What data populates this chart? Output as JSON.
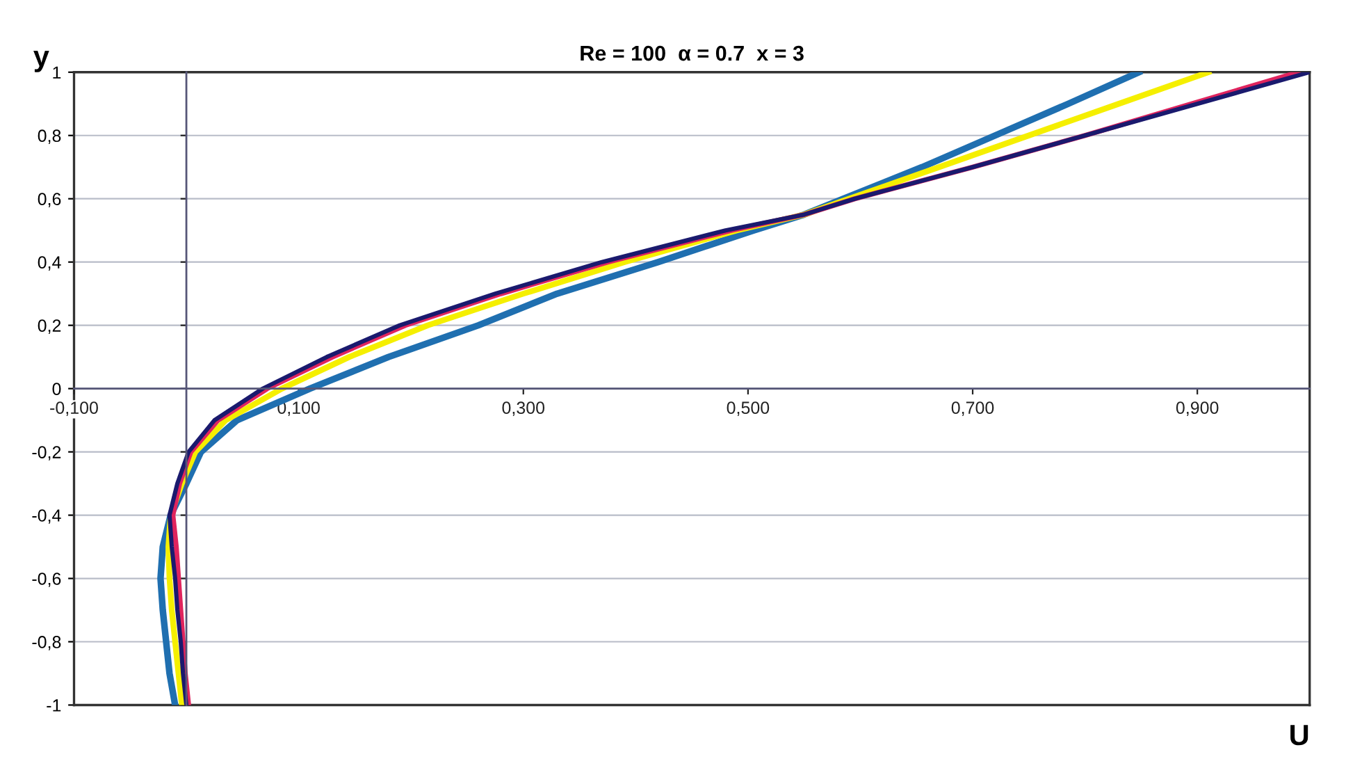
{
  "chart_data": {
    "type": "line",
    "title": "Re = 100  α = 0.7  x = 3",
    "xlabel": "U",
    "ylabel": "y",
    "xlim": [
      -0.1,
      1.0
    ],
    "ylim": [
      -1,
      1
    ],
    "xticks": [
      {
        "value": -0.1,
        "label": "-0,100"
      },
      {
        "value": 0.1,
        "label": "0,100"
      },
      {
        "value": 0.3,
        "label": "0,300"
      },
      {
        "value": 0.5,
        "label": "0,500"
      },
      {
        "value": 0.7,
        "label": "0,700"
      },
      {
        "value": 0.9,
        "label": "0,900"
      }
    ],
    "yticks": [
      -1,
      {
        "value": -0.8,
        "label": "-0,8"
      },
      {
        "value": -0.6,
        "label": "-0,6"
      },
      {
        "value": -0.4,
        "label": "-0,4"
      },
      {
        "value": -0.2,
        "label": "-0,2"
      },
      0,
      {
        "value": 0.2,
        "label": "0,2"
      },
      {
        "value": 0.4,
        "label": "0,4"
      },
      {
        "value": 0.6,
        "label": "0,6"
      },
      {
        "value": 0.8,
        "label": "0,8"
      },
      1
    ],
    "grid": "y",
    "legend": false,
    "marker": "none",
    "line_style": "solid",
    "series": [
      {
        "color": "#1f6fb0",
        "x": [
          -0.01,
          -0.015,
          -0.018,
          -0.021,
          -0.023,
          -0.021,
          -0.014,
          0.0,
          0.013,
          0.045,
          0.11,
          0.18,
          0.26,
          0.33,
          0.42,
          0.505,
          0.55,
          0.585,
          0.655,
          0.72,
          0.785,
          0.848
        ],
        "values": [
          -1,
          -0.9,
          -0.8,
          -0.7,
          -0.6,
          -0.5,
          -0.4,
          -0.3,
          -0.2,
          -0.1,
          0,
          0.1,
          0.2,
          0.3,
          0.4,
          0.5,
          0.55,
          0.6,
          0.7,
          0.8,
          0.9,
          1
        ]
      },
      {
        "color": "#f5ef00",
        "x": [
          -0.004,
          -0.007,
          -0.01,
          -0.013,
          -0.015,
          -0.016,
          -0.014,
          -0.004,
          0.008,
          0.035,
          0.085,
          0.145,
          0.215,
          0.3,
          0.39,
          0.49,
          0.55,
          0.59,
          0.67,
          0.75,
          0.83,
          0.91
        ],
        "values": [
          -1,
          -0.9,
          -0.8,
          -0.7,
          -0.6,
          -0.5,
          -0.4,
          -0.3,
          -0.2,
          -0.1,
          0,
          0.1,
          0.2,
          0.3,
          0.4,
          0.5,
          0.55,
          0.6,
          0.7,
          0.8,
          0.9,
          1
        ]
      },
      {
        "color": "#e0245e",
        "x": [
          0.002,
          -0.001,
          -0.003,
          -0.005,
          -0.007,
          -0.009,
          -0.012,
          -0.006,
          0.004,
          0.028,
          0.072,
          0.13,
          0.195,
          0.28,
          0.375,
          0.485,
          0.55,
          0.595,
          0.7,
          0.8,
          0.895,
          0.99
        ],
        "values": [
          -1,
          -0.9,
          -0.8,
          -0.7,
          -0.6,
          -0.5,
          -0.4,
          -0.3,
          -0.2,
          -0.1,
          0,
          0.1,
          0.2,
          0.3,
          0.4,
          0.5,
          0.55,
          0.6,
          0.7,
          0.8,
          0.9,
          1
        ]
      },
      {
        "color": "#1a1a6e",
        "x": [
          0.0,
          -0.003,
          -0.005,
          -0.008,
          -0.01,
          -0.013,
          -0.015,
          -0.008,
          0.002,
          0.025,
          0.068,
          0.125,
          0.19,
          0.275,
          0.37,
          0.48,
          0.55,
          0.595,
          0.7,
          0.8,
          0.9,
          1.0
        ],
        "values": [
          -1,
          -0.9,
          -0.8,
          -0.7,
          -0.6,
          -0.5,
          -0.4,
          -0.3,
          -0.2,
          -0.1,
          0,
          0.1,
          0.2,
          0.3,
          0.4,
          0.5,
          0.55,
          0.6,
          0.7,
          0.8,
          0.9,
          1
        ]
      }
    ]
  }
}
